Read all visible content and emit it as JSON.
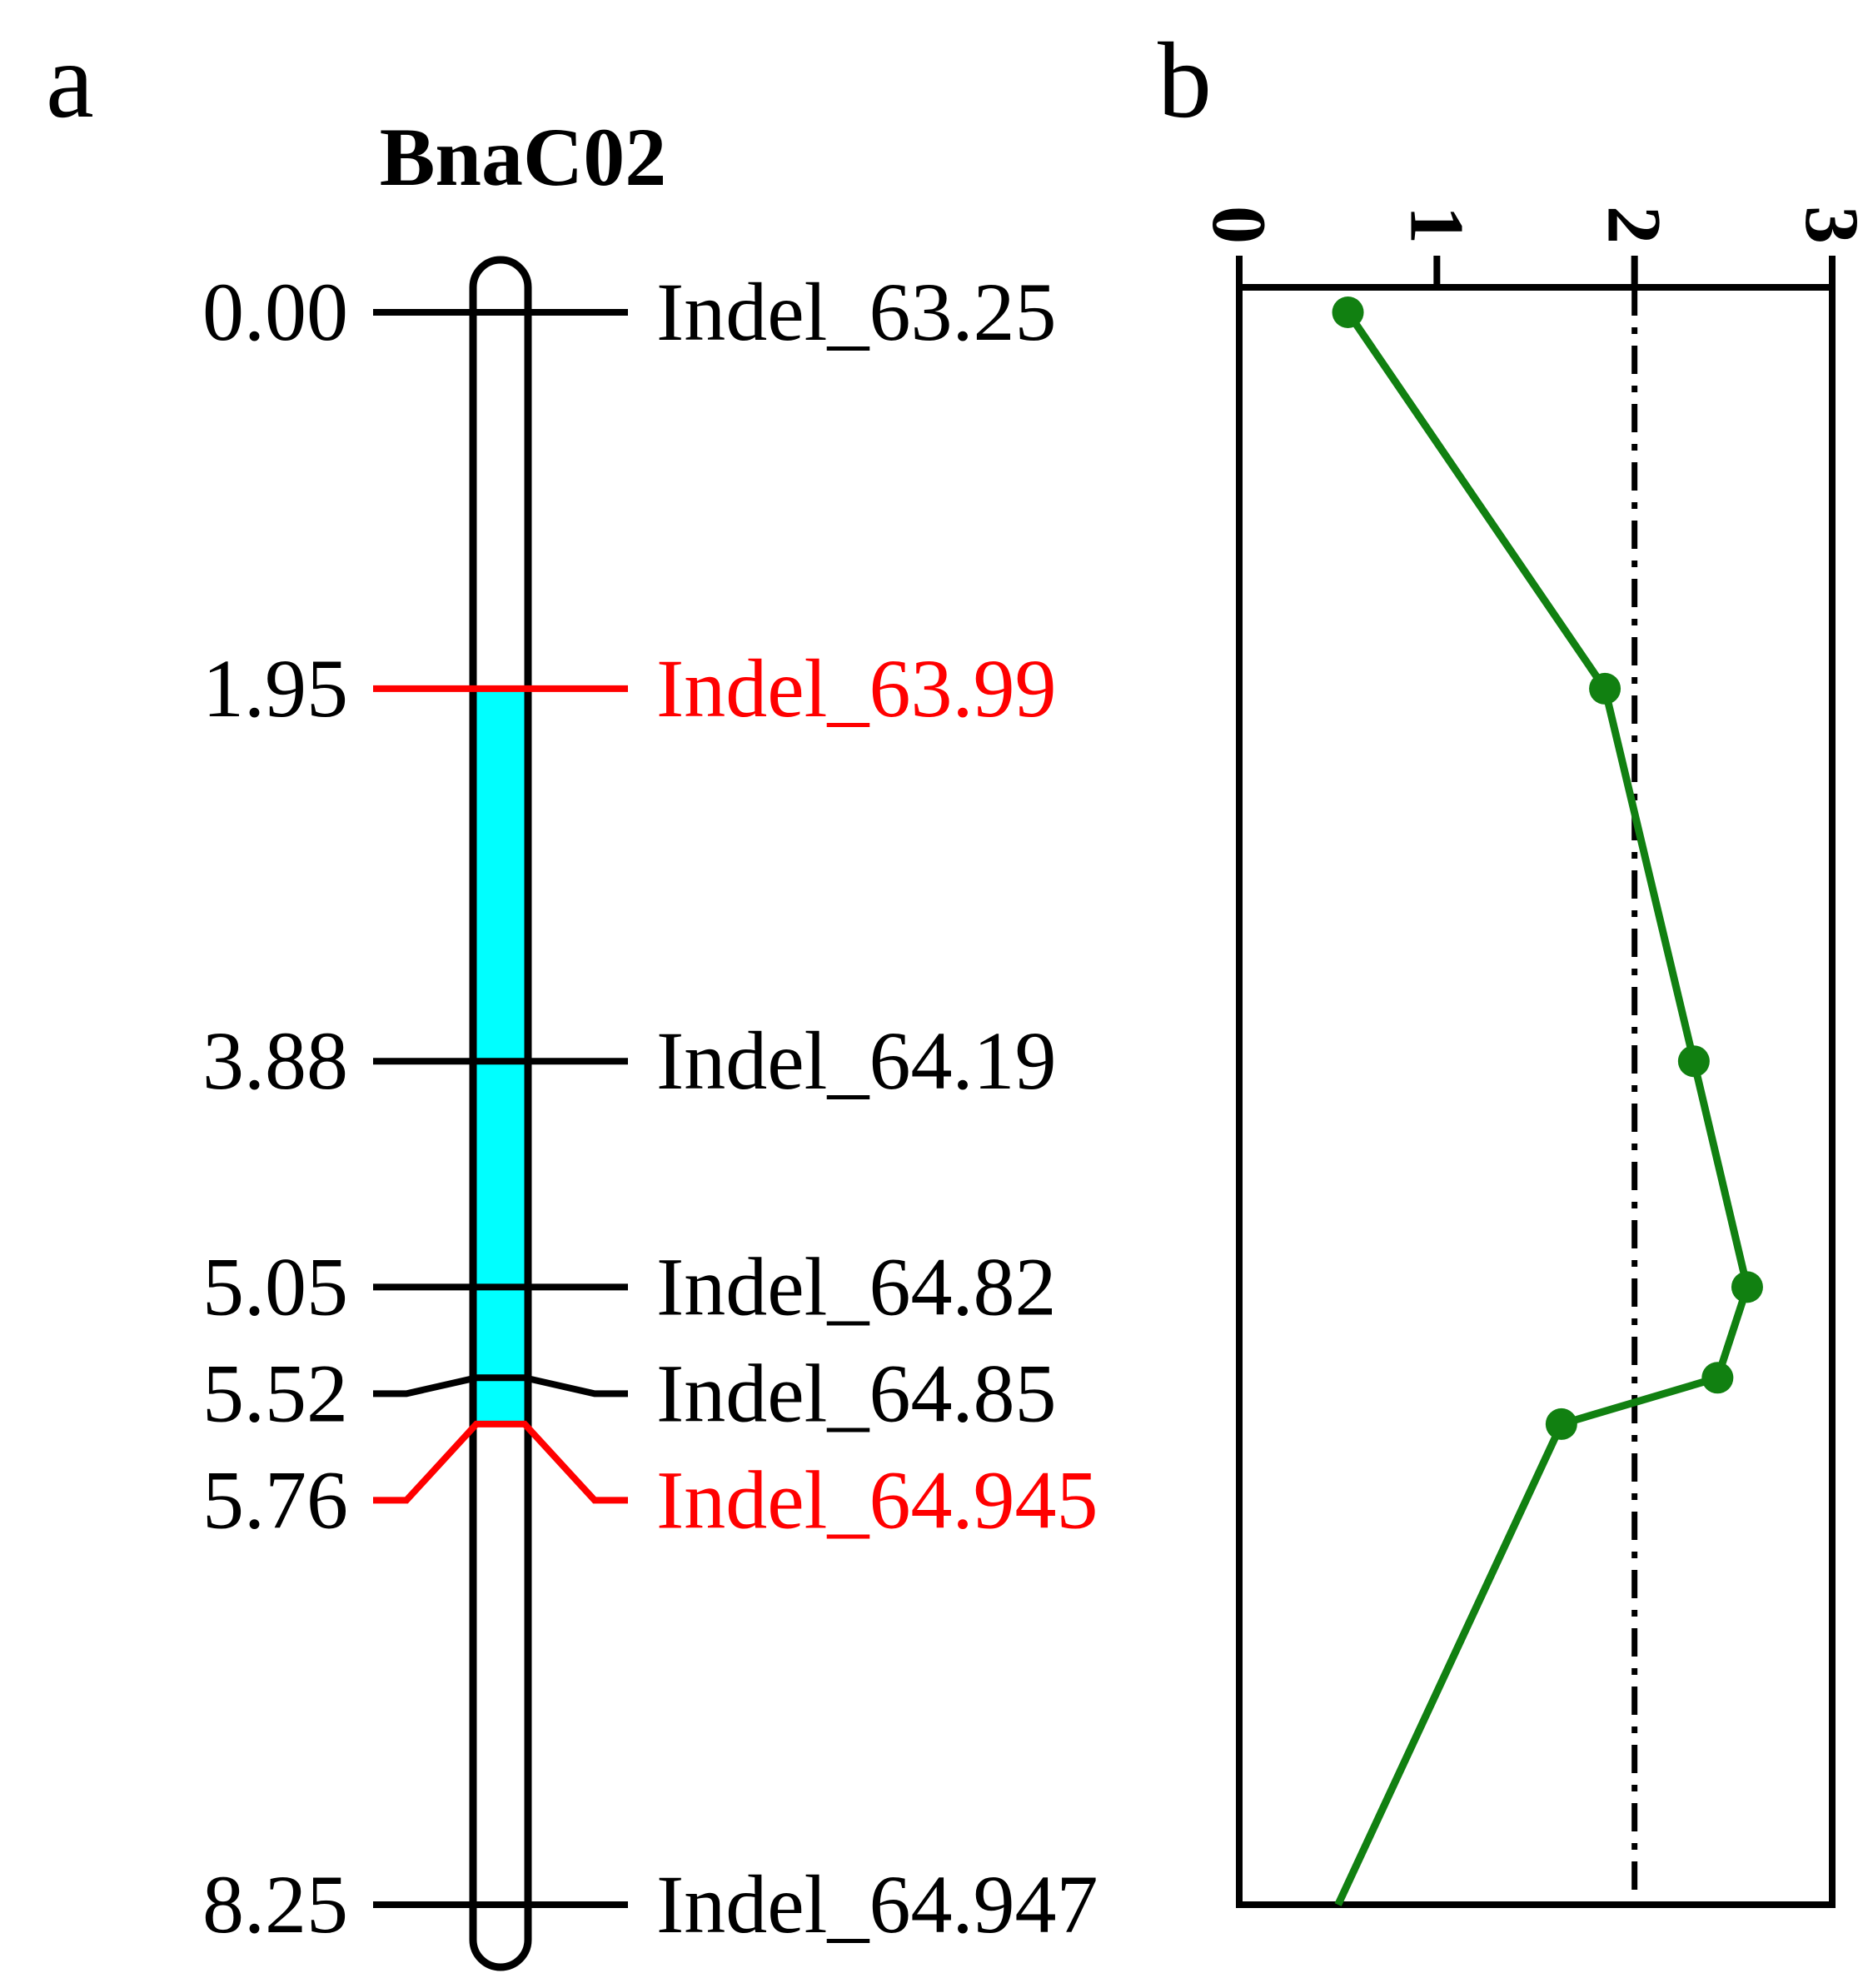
{
  "panels": {
    "a": "a",
    "b": "b"
  },
  "chart_data": [
    {
      "type": "table",
      "title": "BnaC02",
      "rows": [
        {
          "pos": "0.00",
          "marker": "Indel_63.25",
          "highlight": false
        },
        {
          "pos": "1.95",
          "marker": "Indel_63.99",
          "highlight": true
        },
        {
          "pos": "3.88",
          "marker": "Indel_64.19",
          "highlight": false
        },
        {
          "pos": "5.05",
          "marker": "Indel_64.82",
          "highlight": false
        },
        {
          "pos": "5.52",
          "marker": "Indel_64.85",
          "highlight": false
        },
        {
          "pos": "5.76",
          "marker": "Indel_64.945",
          "highlight": true
        },
        {
          "pos": "8.25",
          "marker": "Indel_64.947",
          "highlight": false
        }
      ],
      "interval": [
        "1.95",
        "5.76"
      ],
      "colors": {
        "interval": "#00ffff",
        "highlight": "#ff0000",
        "line": "#000000"
      }
    },
    {
      "type": "line",
      "axis": {
        "min": 0,
        "max": 3,
        "ticks": [
          "0",
          "1",
          "2",
          "3"
        ],
        "tick_values": [
          0,
          1,
          2,
          3
        ]
      },
      "threshold": 2.0,
      "points": [
        {
          "marker": "Indel_63.25",
          "value": 0.55
        },
        {
          "marker": "Indel_63.99",
          "value": 1.85
        },
        {
          "marker": "Indel_64.19",
          "value": 2.3
        },
        {
          "marker": "Indel_64.82",
          "value": 2.57
        },
        {
          "marker": "Indel_64.85",
          "value": 2.42
        },
        {
          "marker": "Indel_64.945",
          "value": 1.63
        },
        {
          "marker": "Indel_64.947",
          "value": 0.5
        }
      ],
      "end_marker_shown": false,
      "colors": {
        "series": "#118011",
        "frame": "#000000",
        "threshold": "#000000"
      }
    }
  ]
}
